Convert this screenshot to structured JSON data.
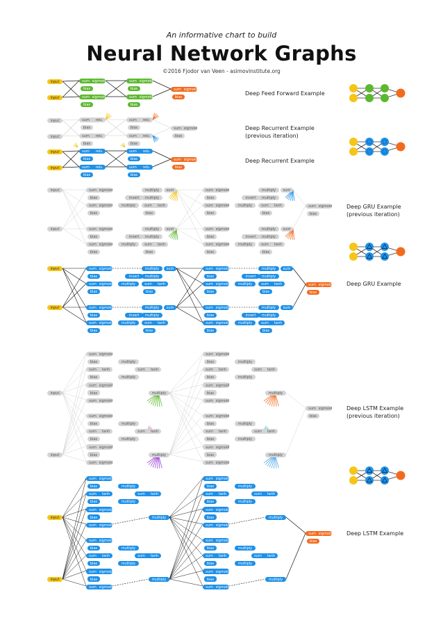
{
  "header": {
    "subtitle": "An informative chart to build",
    "title": "Neural Network Graphs",
    "credit": "©2016 Fjodor van Veen - asimovinstitute.org"
  },
  "labels": {
    "input": "input",
    "sum": "sum",
    "sigmoid": "sigmoid",
    "relu": "relu",
    "tanh": "tanh",
    "bias": "bias",
    "multiply": "multiply",
    "invert": "invert"
  },
  "examples": {
    "ff": "Deep Feed Forward Example",
    "rec_prev_1": "Deep Recurrent Example",
    "rec_prev_2": "(previous iteration)",
    "rec": "Deep Recurrent Example",
    "gru_prev_1": "Deep GRU Example",
    "gru_prev_2": "(previous iteration)",
    "gru": "Deep GRU Example",
    "lstm_prev_1": "Deep LSTM Example",
    "lstm_prev_2": "(previous iteration)",
    "lstm": "Deep LSTM Example"
  },
  "colors": {
    "input": "#f5c518",
    "green": "#5cb82e",
    "blue": "#1e90e8",
    "orange": "#f26b1d",
    "gray": "#d4d4d4",
    "gray_text": "#555555"
  }
}
